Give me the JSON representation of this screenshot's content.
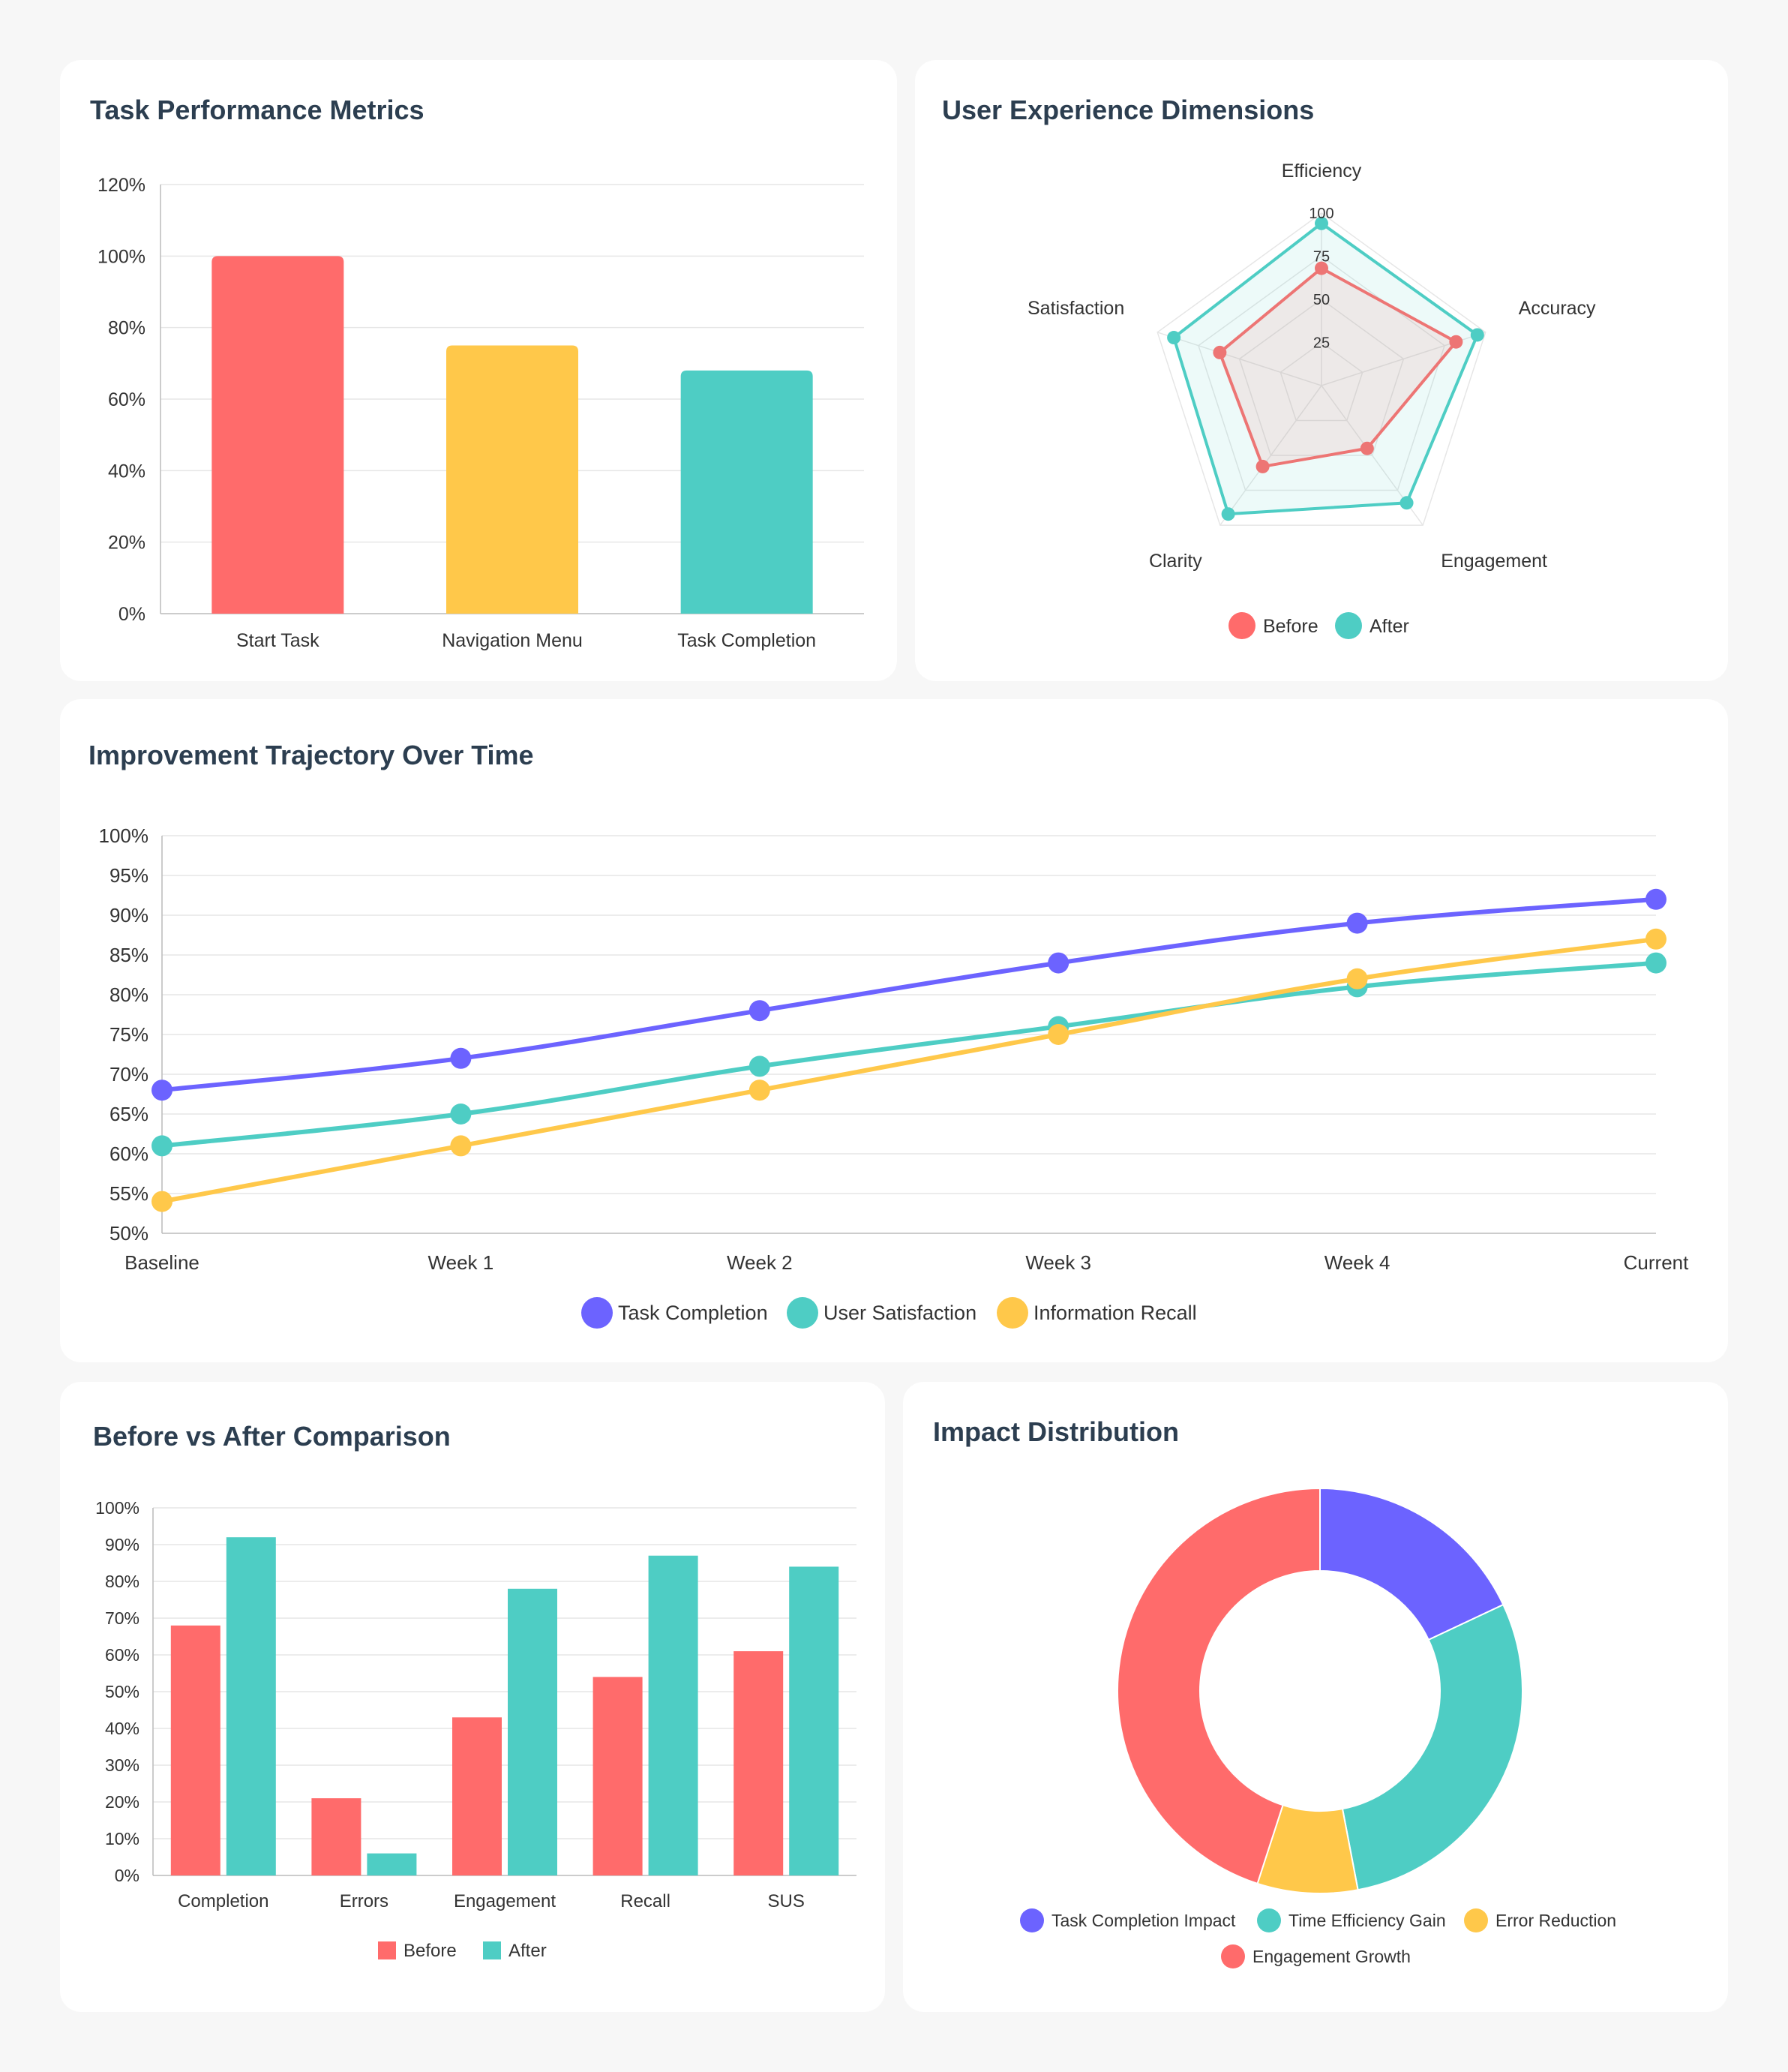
{
  "colors": {
    "red": "#ff6b6b",
    "yellow": "#ffc84a",
    "teal": "#4ecdc4",
    "purple": "#6c63ff",
    "grid": "#e6e6e6",
    "axis": "#bbbbbb"
  },
  "chart_data": [
    {
      "id": "task-performance",
      "type": "bar",
      "title": "Task Performance Metrics",
      "categories": [
        "Start Task",
        "Navigation Menu",
        "Task Completion"
      ],
      "values": [
        100,
        75,
        68
      ],
      "colors": [
        "#ff6b6b",
        "#ffc84a",
        "#4ecdc4"
      ],
      "ylim": [
        0,
        120
      ],
      "yticks": [
        "0%",
        "20%",
        "40%",
        "60%",
        "80%",
        "100%",
        "120%"
      ],
      "ytick_values": [
        0,
        20,
        40,
        60,
        80,
        100,
        120
      ],
      "grid": true
    },
    {
      "id": "ux-dimensions",
      "type": "radar",
      "title": "User Experience Dimensions",
      "axes": [
        "Efficiency",
        "Accuracy",
        "Engagement",
        "Clarity",
        "Satisfaction"
      ],
      "rlim": [
        0,
        100
      ],
      "rticks": [
        "25",
        "50",
        "75",
        "100"
      ],
      "rtick_values": [
        25,
        50,
        75,
        100
      ],
      "series": [
        {
          "name": "Before",
          "values": [
            68,
            82,
            45,
            58,
            62
          ],
          "color": "#ff6b6b"
        },
        {
          "name": "After",
          "values": [
            94,
            95,
            84,
            92,
            90
          ],
          "color": "#4ecdc4"
        }
      ],
      "legend": [
        "Before",
        "After"
      ]
    },
    {
      "id": "trajectory",
      "type": "line",
      "title": "Improvement Trajectory Over Time",
      "categories": [
        "Baseline",
        "Week 1",
        "Week 2",
        "Week 3",
        "Week 4",
        "Current"
      ],
      "ylim": [
        50,
        100
      ],
      "yticks": [
        "50%",
        "55%",
        "60%",
        "65%",
        "70%",
        "75%",
        "80%",
        "85%",
        "90%",
        "95%",
        "100%"
      ],
      "ytick_values": [
        50,
        55,
        60,
        65,
        70,
        75,
        80,
        85,
        90,
        95,
        100
      ],
      "series": [
        {
          "name": "Task Completion",
          "values": [
            68,
            72,
            78,
            84,
            89,
            92
          ],
          "color": "#6c63ff"
        },
        {
          "name": "User Satisfaction",
          "values": [
            61,
            65,
            71,
            76,
            81,
            84
          ],
          "color": "#4ecdc4"
        },
        {
          "name": "Information Recall",
          "values": [
            54,
            61,
            68,
            75,
            82,
            87
          ],
          "color": "#ffc84a"
        }
      ],
      "legend": [
        "Task Completion",
        "User Satisfaction",
        "Information Recall"
      ],
      "grid": true
    },
    {
      "id": "before-after",
      "type": "bar",
      "title": "Before vs After Comparison",
      "categories": [
        "Completion",
        "Errors",
        "Engagement",
        "Recall",
        "SUS"
      ],
      "ylim": [
        0,
        100
      ],
      "yticks": [
        "0%",
        "10%",
        "20%",
        "30%",
        "40%",
        "50%",
        "60%",
        "70%",
        "80%",
        "90%",
        "100%"
      ],
      "ytick_values": [
        0,
        10,
        20,
        30,
        40,
        50,
        60,
        70,
        80,
        90,
        100
      ],
      "series": [
        {
          "name": "Before",
          "values": [
            68,
            21,
            43,
            54,
            61
          ],
          "color": "#ff6b6b"
        },
        {
          "name": "After",
          "values": [
            92,
            6,
            78,
            87,
            84
          ],
          "color": "#4ecdc4"
        }
      ],
      "legend": [
        "Before",
        "After"
      ],
      "grid": true
    },
    {
      "id": "impact",
      "type": "pie",
      "title": "Impact Distribution",
      "categories": [
        "Task Completion Impact",
        "Time Efficiency Gain",
        "Error Reduction",
        "Engagement Growth"
      ],
      "values": [
        18,
        29,
        8,
        45
      ],
      "colors": [
        "#6c63ff",
        "#4ecdc4",
        "#ffc84a",
        "#ff6b6b"
      ],
      "legend": [
        "Task Completion Impact",
        "Time Efficiency Gain",
        "Error Reduction",
        "Engagement Growth"
      ]
    }
  ]
}
